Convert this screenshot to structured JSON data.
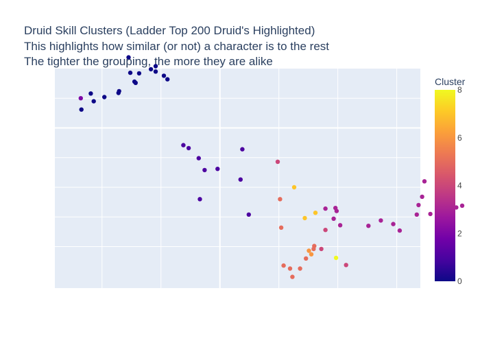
{
  "chart_data": {
    "type": "scatter",
    "title": [
      "Druid Skill Clusters (Ladder Top 200 Druid's Highlighted)",
      "This highlights how similar (or not) a character is to the rest",
      "The tighter the grouping, the more they are alike"
    ],
    "xlabel": "",
    "ylabel": "",
    "x_tick_labels": "hidden",
    "y_tick_labels": "hidden",
    "grid": true,
    "colorbar": {
      "title": "Cluster",
      "min": 0,
      "max": 8,
      "ticks": [
        0,
        2,
        4,
        6,
        8
      ],
      "colorscale": [
        "#0d0887",
        "#46039f",
        "#7201a8",
        "#9c179e",
        "#bd3786",
        "#d8576b",
        "#ed7953",
        "#fb9f3a",
        "#fdca26",
        "#f0f921"
      ]
    },
    "x": [
      -2.36,
      -2.35,
      -2.19,
      -2.14,
      -1.96,
      -1.72,
      -1.71,
      -1.55,
      -1.52,
      -1.45,
      -1.43,
      -1.37,
      -1.17,
      -1.09,
      -1.09,
      -0.95,
      -0.89,
      0.38,
      -0.62,
      -0.53,
      -0.36,
      -0.04,
      0.35,
      -0.26,
      0.49,
      -0.34,
      1.79,
      1.93,
      1.98,
      2.04,
      2.52,
      1.96,
      2.94,
      3.05,
      3.34,
      3.43,
      2.73,
      3.47,
      3.81,
      4.01,
      3.57,
      4.11,
      3.37,
      0.98,
      1.26,
      1.44,
      1.62,
      1.79,
      1.97,
      2.14,
      1.72,
      1.59,
      1.6,
      1.51,
      1.55,
      1.46,
      1.36,
      1.23,
      1.19,
      1.08,
      1.04,
      1.02
    ],
    "y": [
      2.5,
      2.69,
      2.42,
      2.55,
      2.48,
      2.41,
      2.38,
      1.81,
      2.07,
      2.22,
      2.24,
      2.08,
      2.01,
      2.05,
      1.96,
      2.12,
      2.18,
      3.36,
      3.29,
      3.34,
      3.51,
      3.69,
      3.87,
      3.71,
      4.46,
      4.2,
      4.36,
      4.53,
      4.4,
      4.64,
      4.65,
      4.35,
      4.62,
      4.73,
      4.46,
      4.16,
      4.56,
      3.9,
      4.43,
      4.34,
      4.45,
      4.31,
      4.3,
      3.57,
      4.0,
      4.52,
      4.43,
      4.72,
      5.19,
      5.31,
      5.04,
      5.04,
      4.99,
      5.07,
      5.13,
      5.2,
      5.37,
      5.51,
      5.37,
      5.32,
      4.68,
      4.2
    ],
    "cluster": [
      2,
      0,
      0,
      0,
      0,
      0,
      0,
      0,
      0,
      0,
      0,
      0,
      0,
      0,
      0,
      0,
      0,
      1,
      1,
      1,
      1,
      1,
      1,
      1,
      1,
      1,
      3,
      3,
      3,
      3,
      3,
      3,
      3,
      3,
      3,
      3,
      3,
      3,
      3,
      3,
      3,
      3,
      3,
      4,
      7,
      7,
      7,
      4,
      8,
      4,
      4,
      5,
      5,
      6,
      6,
      5,
      5,
      5,
      5,
      5,
      5,
      5
    ]
  }
}
